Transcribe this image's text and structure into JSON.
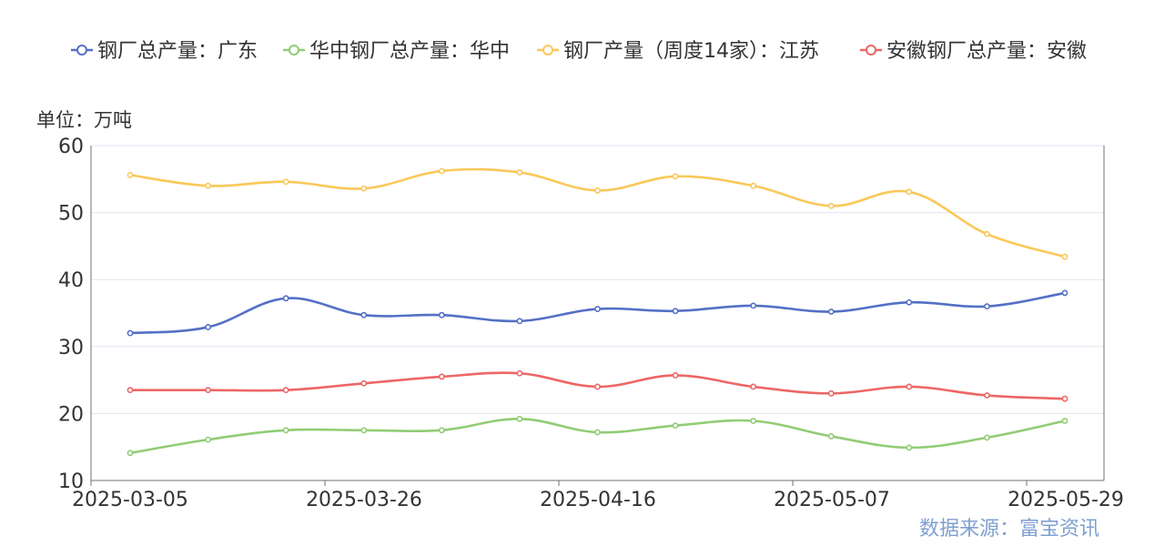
{
  "chart_data": {
    "type": "line",
    "unit_label": "单位：万吨",
    "source_label": "数据来源：富宝资讯",
    "x": [
      "2025-03-05",
      "2025-03-12",
      "2025-03-19",
      "2025-03-26",
      "2025-04-02",
      "2025-04-09",
      "2025-04-16",
      "2025-04-23",
      "2025-04-30",
      "2025-05-07",
      "2025-05-14",
      "2025-05-21",
      "2025-05-28"
    ],
    "x_tick_labels": [
      "2025-03-05",
      "2025-03-26",
      "2025-04-16",
      "2025-05-07",
      "2025-05-29"
    ],
    "y_ticks": [
      10,
      20,
      30,
      40,
      50,
      60
    ],
    "ylim": [
      10,
      60
    ],
    "grid": true,
    "legend_position": "top",
    "series": [
      {
        "name": "钢厂总产量：广东",
        "color": "#5470c6",
        "values": [
          32.0,
          32.9,
          37.2,
          34.7,
          34.7,
          33.8,
          35.6,
          35.3,
          36.1,
          35.2,
          36.6,
          36.0,
          38.0
        ]
      },
      {
        "name": "华中钢厂总产量：华中",
        "color": "#91cc75",
        "values": [
          14.1,
          16.1,
          17.5,
          17.5,
          17.5,
          19.2,
          17.2,
          18.2,
          18.9,
          16.6,
          14.9,
          16.4,
          18.9
        ]
      },
      {
        "name": "钢厂产量（周度14家）：江苏",
        "color": "#fac858",
        "values": [
          55.6,
          54.0,
          54.6,
          53.6,
          56.2,
          56.0,
          53.3,
          55.4,
          54.0,
          51.0,
          53.1,
          46.8,
          43.4
        ]
      },
      {
        "name": "安徽钢厂总产量：安徽",
        "color": "#ee6666",
        "values": [
          23.5,
          23.5,
          23.5,
          24.5,
          25.5,
          26.0,
          24.0,
          25.7,
          24.0,
          23.0,
          24.0,
          22.7,
          22.2
        ]
      }
    ]
  }
}
